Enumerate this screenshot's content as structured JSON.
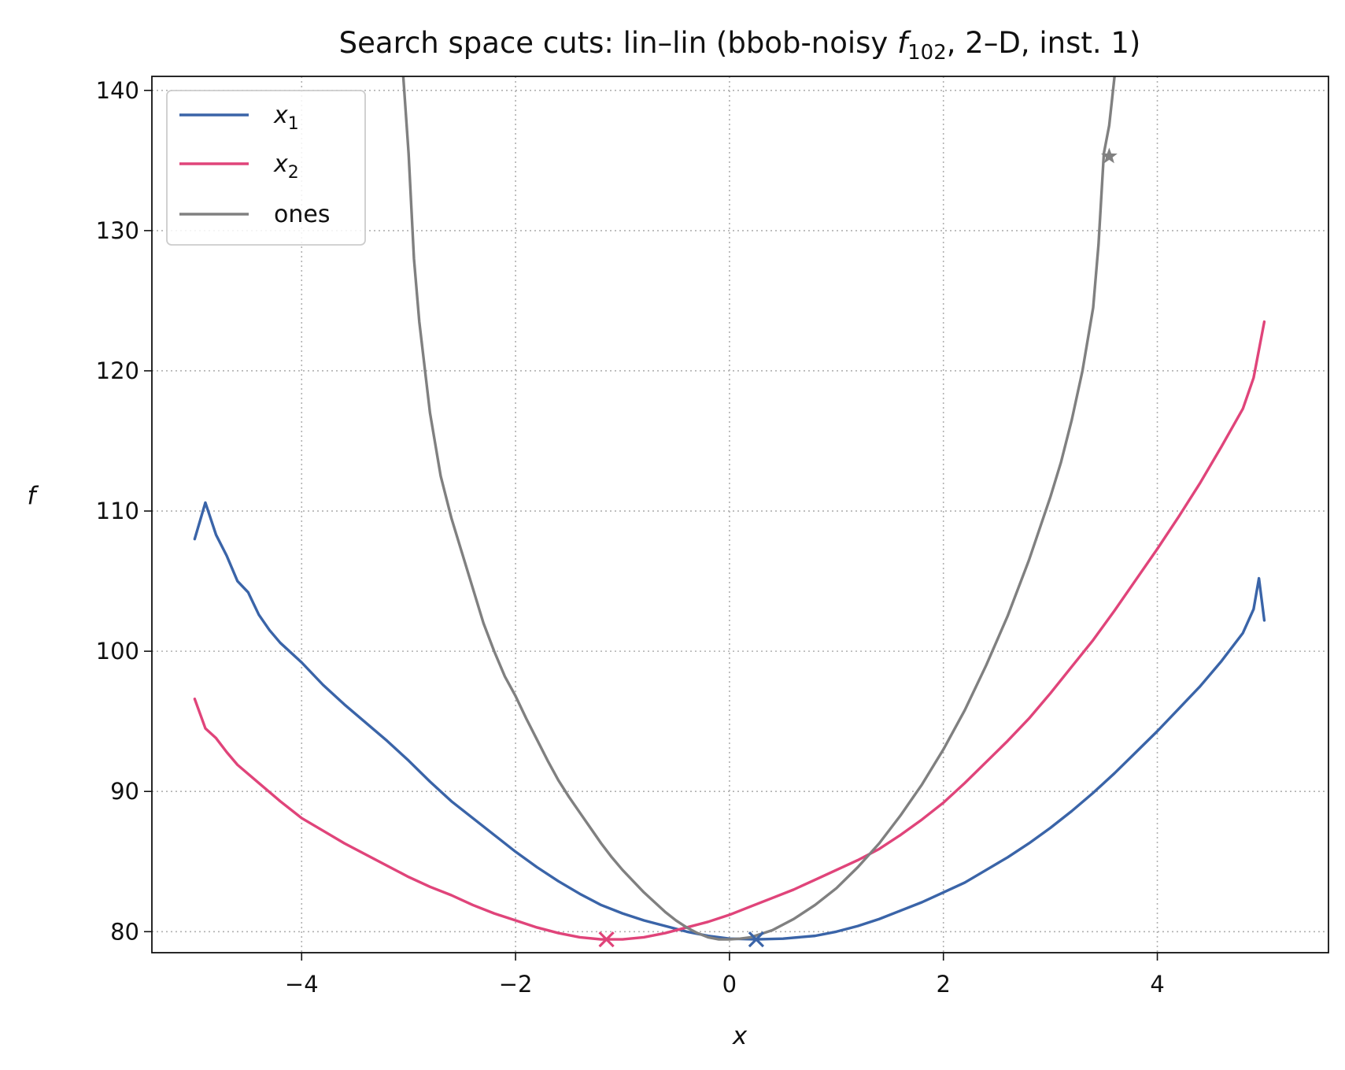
{
  "chart_data": {
    "type": "line",
    "title": "Search space cuts: lin–lin (bbob-noisy ",
    "title_func": "f",
    "title_sub": "102",
    "title_rest": ", 2–D, inst. 1)",
    "xlabel": "x",
    "ylabel": "f",
    "xlim": [
      -5.4,
      5.6
    ],
    "ylim": [
      78.5,
      141
    ],
    "xticks": [
      -4,
      -2,
      0,
      2,
      4
    ],
    "xtick_labels": [
      "−4",
      "−2",
      "0",
      "2",
      "4"
    ],
    "yticks": [
      80,
      90,
      100,
      110,
      120,
      130,
      140
    ],
    "ytick_labels": [
      "80",
      "90",
      "100",
      "110",
      "120",
      "130",
      "140"
    ],
    "grid": true,
    "legend": {
      "position": "top-left",
      "entries": [
        {
          "var": "x",
          "sub": "1"
        },
        {
          "var": "x",
          "sub": "2"
        },
        {
          "text": "ones"
        }
      ]
    },
    "series": [
      {
        "name": "x1",
        "color": "#3a64a8",
        "points": [
          [
            -5.0,
            108.0
          ],
          [
            -4.9,
            110.6
          ],
          [
            -4.8,
            108.3
          ],
          [
            -4.7,
            106.8
          ],
          [
            -4.6,
            105.0
          ],
          [
            -4.5,
            104.2
          ],
          [
            -4.4,
            102.6
          ],
          [
            -4.3,
            101.5
          ],
          [
            -4.2,
            100.6
          ],
          [
            -4.0,
            99.2
          ],
          [
            -3.8,
            97.6
          ],
          [
            -3.6,
            96.2
          ],
          [
            -3.4,
            94.9
          ],
          [
            -3.2,
            93.6
          ],
          [
            -3.0,
            92.2
          ],
          [
            -2.8,
            90.7
          ],
          [
            -2.6,
            89.3
          ],
          [
            -2.4,
            88.1
          ],
          [
            -2.2,
            86.9
          ],
          [
            -2.0,
            85.7
          ],
          [
            -1.8,
            84.6
          ],
          [
            -1.6,
            83.6
          ],
          [
            -1.4,
            82.7
          ],
          [
            -1.2,
            81.9
          ],
          [
            -1.0,
            81.3
          ],
          [
            -0.8,
            80.8
          ],
          [
            -0.6,
            80.4
          ],
          [
            -0.4,
            80.0
          ],
          [
            -0.2,
            79.7
          ],
          [
            0.0,
            79.5
          ],
          [
            0.25,
            79.45
          ],
          [
            0.5,
            79.5
          ],
          [
            0.8,
            79.7
          ],
          [
            1.0,
            80.0
          ],
          [
            1.2,
            80.4
          ],
          [
            1.4,
            80.9
          ],
          [
            1.6,
            81.5
          ],
          [
            1.8,
            82.1
          ],
          [
            2.0,
            82.8
          ],
          [
            2.2,
            83.5
          ],
          [
            2.4,
            84.4
          ],
          [
            2.6,
            85.3
          ],
          [
            2.8,
            86.3
          ],
          [
            3.0,
            87.4
          ],
          [
            3.2,
            88.6
          ],
          [
            3.4,
            89.9
          ],
          [
            3.6,
            91.3
          ],
          [
            3.8,
            92.8
          ],
          [
            4.0,
            94.3
          ],
          [
            4.2,
            95.9
          ],
          [
            4.4,
            97.5
          ],
          [
            4.6,
            99.3
          ],
          [
            4.8,
            101.3
          ],
          [
            4.9,
            103.0
          ],
          [
            4.95,
            105.2
          ],
          [
            5.0,
            102.2
          ]
        ],
        "marker": {
          "symbol": "x",
          "x": 0.25,
          "y": 79.45
        }
      },
      {
        "name": "x2",
        "color": "#e0447a",
        "points": [
          [
            -5.0,
            96.6
          ],
          [
            -4.9,
            94.5
          ],
          [
            -4.8,
            93.8
          ],
          [
            -4.7,
            92.8
          ],
          [
            -4.6,
            91.9
          ],
          [
            -4.4,
            90.6
          ],
          [
            -4.2,
            89.3
          ],
          [
            -4.0,
            88.1
          ],
          [
            -3.8,
            87.2
          ],
          [
            -3.6,
            86.3
          ],
          [
            -3.4,
            85.5
          ],
          [
            -3.2,
            84.7
          ],
          [
            -3.0,
            83.9
          ],
          [
            -2.8,
            83.2
          ],
          [
            -2.6,
            82.6
          ],
          [
            -2.4,
            81.9
          ],
          [
            -2.2,
            81.3
          ],
          [
            -2.0,
            80.8
          ],
          [
            -1.8,
            80.3
          ],
          [
            -1.6,
            79.9
          ],
          [
            -1.4,
            79.6
          ],
          [
            -1.2,
            79.45
          ],
          [
            -1.0,
            79.45
          ],
          [
            -0.8,
            79.6
          ],
          [
            -0.6,
            79.9
          ],
          [
            -0.4,
            80.3
          ],
          [
            -0.2,
            80.7
          ],
          [
            0.0,
            81.2
          ],
          [
            0.2,
            81.8
          ],
          [
            0.4,
            82.4
          ],
          [
            0.6,
            83.0
          ],
          [
            0.8,
            83.7
          ],
          [
            1.0,
            84.4
          ],
          [
            1.2,
            85.1
          ],
          [
            1.4,
            85.9
          ],
          [
            1.6,
            86.9
          ],
          [
            1.8,
            88.0
          ],
          [
            2.0,
            89.2
          ],
          [
            2.2,
            90.6
          ],
          [
            2.4,
            92.1
          ],
          [
            2.6,
            93.6
          ],
          [
            2.8,
            95.2
          ],
          [
            3.0,
            97.0
          ],
          [
            3.2,
            98.9
          ],
          [
            3.4,
            100.8
          ],
          [
            3.6,
            102.9
          ],
          [
            3.8,
            105.1
          ],
          [
            4.0,
            107.3
          ],
          [
            4.2,
            109.6
          ],
          [
            4.4,
            112.0
          ],
          [
            4.6,
            114.6
          ],
          [
            4.8,
            117.3
          ],
          [
            4.9,
            119.5
          ],
          [
            5.0,
            123.5
          ]
        ],
        "marker": {
          "symbol": "x",
          "x": -1.15,
          "y": 79.45
        }
      },
      {
        "name": "ones",
        "color": "#808080",
        "points": [
          [
            -3.05,
            141.0
          ],
          [
            -3.0,
            135.5
          ],
          [
            -2.95,
            128.0
          ],
          [
            -2.9,
            123.5
          ],
          [
            -2.8,
            117.0
          ],
          [
            -2.7,
            112.5
          ],
          [
            -2.6,
            109.5
          ],
          [
            -2.5,
            107.0
          ],
          [
            -2.4,
            104.5
          ],
          [
            -2.3,
            102.0
          ],
          [
            -2.2,
            100.0
          ],
          [
            -2.1,
            98.2
          ],
          [
            -2.0,
            96.8
          ],
          [
            -1.9,
            95.2
          ],
          [
            -1.8,
            93.7
          ],
          [
            -1.7,
            92.2
          ],
          [
            -1.6,
            90.8
          ],
          [
            -1.5,
            89.6
          ],
          [
            -1.4,
            88.5
          ],
          [
            -1.3,
            87.4
          ],
          [
            -1.2,
            86.3
          ],
          [
            -1.1,
            85.3
          ],
          [
            -1.0,
            84.4
          ],
          [
            -0.9,
            83.6
          ],
          [
            -0.8,
            82.8
          ],
          [
            -0.7,
            82.1
          ],
          [
            -0.6,
            81.4
          ],
          [
            -0.5,
            80.8
          ],
          [
            -0.4,
            80.3
          ],
          [
            -0.3,
            79.9
          ],
          [
            -0.2,
            79.6
          ],
          [
            -0.1,
            79.45
          ],
          [
            0.0,
            79.45
          ],
          [
            0.1,
            79.5
          ],
          [
            0.2,
            79.6
          ],
          [
            0.4,
            80.1
          ],
          [
            0.6,
            80.9
          ],
          [
            0.8,
            81.9
          ],
          [
            1.0,
            83.1
          ],
          [
            1.2,
            84.6
          ],
          [
            1.4,
            86.3
          ],
          [
            1.6,
            88.3
          ],
          [
            1.8,
            90.5
          ],
          [
            2.0,
            93.0
          ],
          [
            2.2,
            95.8
          ],
          [
            2.4,
            99.0
          ],
          [
            2.6,
            102.5
          ],
          [
            2.8,
            106.5
          ],
          [
            3.0,
            111.0
          ],
          [
            3.1,
            113.5
          ],
          [
            3.2,
            116.5
          ],
          [
            3.3,
            120.0
          ],
          [
            3.4,
            124.5
          ],
          [
            3.45,
            129.0
          ],
          [
            3.5,
            135.5
          ],
          [
            3.55,
            137.5
          ],
          [
            3.6,
            141.0
          ]
        ],
        "marker": {
          "symbol": "star",
          "x": 3.55,
          "y": 135.3
        }
      }
    ]
  }
}
